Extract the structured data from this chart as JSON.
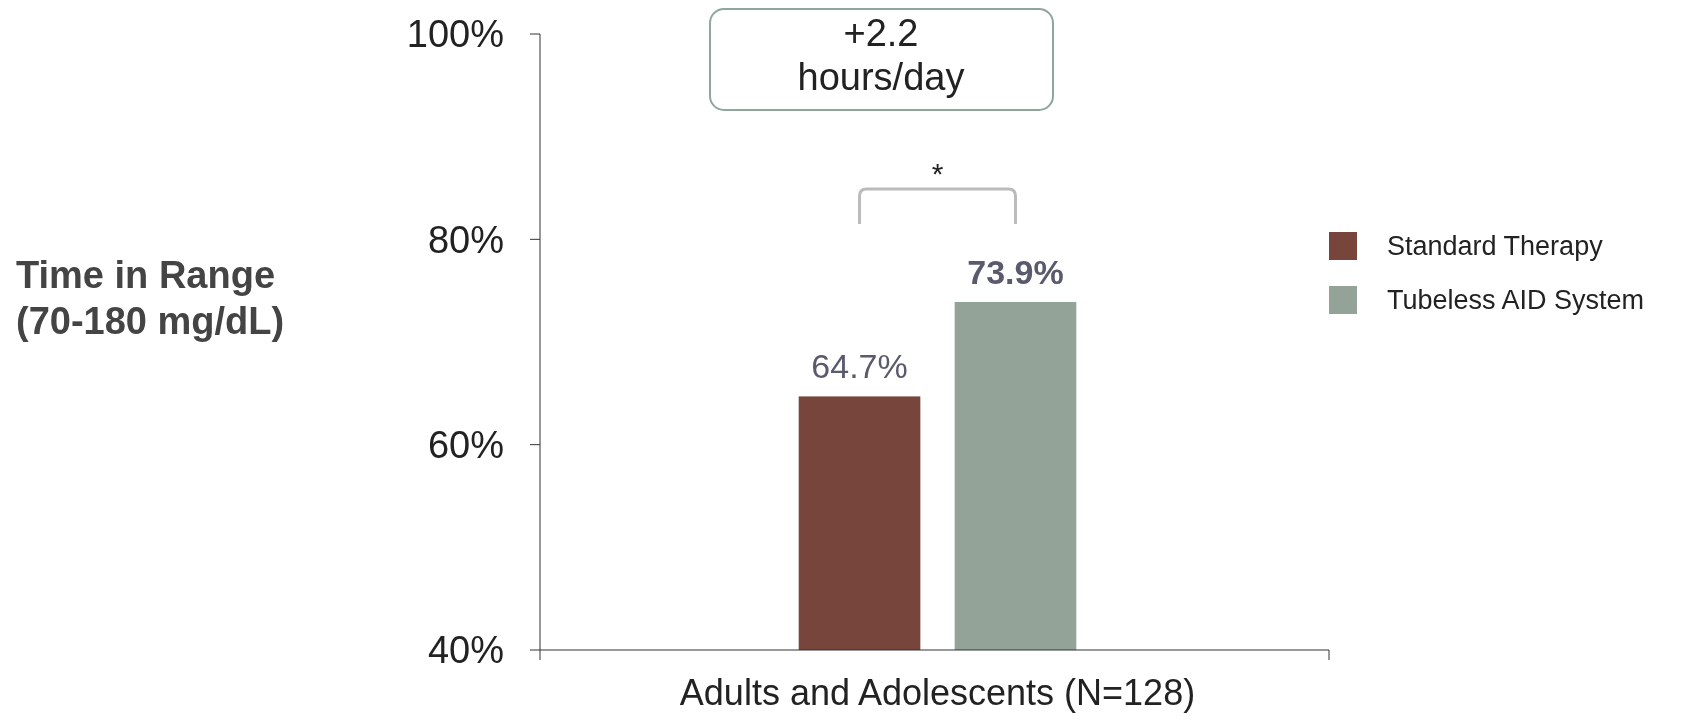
{
  "chart_data": {
    "type": "bar",
    "categories": [
      "Adults and Adolescents (N=128)"
    ],
    "series": [
      {
        "name": "Standard Therapy",
        "color": "#78453c",
        "values": [
          64.7
        ],
        "value_labels": [
          "64.7%"
        ]
      },
      {
        "name": "Tubeless AID System",
        "color": "#93a398",
        "values": [
          73.9
        ],
        "value_labels": [
          "73.9%"
        ]
      }
    ],
    "ylabel": "Time in Range\n(70-180 mg/dL)",
    "ylim": [
      40,
      100
    ],
    "yticks": [
      {
        "value": 40,
        "label": "40%"
      },
      {
        "value": 60,
        "label": "60%"
      },
      {
        "value": 80,
        "label": "80%"
      },
      {
        "value": 100,
        "label": "100%"
      }
    ],
    "legend": "right",
    "grid": false,
    "annotations": [
      "+2.2\nhours/day",
      "*"
    ]
  }
}
